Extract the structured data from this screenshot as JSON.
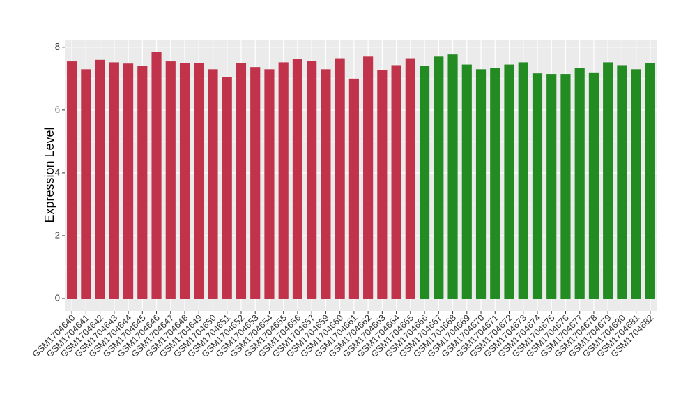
{
  "chart_data": {
    "type": "bar",
    "y_label": "Expression Level",
    "categories": [
      "GSM1704640",
      "GSM1704641",
      "GSM1704642",
      "GSM1704643",
      "GSM1704644",
      "GSM1704645",
      "GSM1704646",
      "GSM1704647",
      "GSM1704648",
      "GSM1704649",
      "GSM1704650",
      "GSM1704651",
      "GSM1704652",
      "GSM1704653",
      "GSM1704654",
      "GSM1704655",
      "GSM1704656",
      "GSM1704657",
      "GSM1704659",
      "GSM1704660",
      "GSM1704661",
      "GSM1704662",
      "GSM1704663",
      "GSM1704664",
      "GSM1704665",
      "GSM1704666",
      "GSM1704667",
      "GSM1704668",
      "GSM1704669",
      "GSM1704670",
      "GSM1704671",
      "GSM1704672",
      "GSM1704673",
      "GSM1704674",
      "GSM1704675",
      "GSM1704676",
      "GSM1704677",
      "GSM1704678",
      "GSM1704679",
      "GSM1704680",
      "GSM1704681",
      "GSM1704682"
    ],
    "values": [
      7.55,
      7.3,
      7.6,
      7.52,
      7.48,
      7.4,
      7.85,
      7.55,
      7.5,
      7.5,
      7.3,
      7.05,
      7.5,
      7.37,
      7.3,
      7.52,
      7.63,
      7.57,
      7.3,
      7.65,
      7.0,
      7.7,
      7.28,
      7.43,
      7.65,
      7.4,
      7.7,
      7.77,
      7.45,
      7.3,
      7.35,
      7.45,
      7.52,
      7.17,
      7.15,
      7.15,
      7.35,
      7.2,
      7.52,
      7.43,
      7.3,
      7.5
    ],
    "colors": [
      "#c0334b",
      "#c0334b",
      "#c0334b",
      "#c0334b",
      "#c0334b",
      "#c0334b",
      "#c0334b",
      "#c0334b",
      "#c0334b",
      "#c0334b",
      "#c0334b",
      "#c0334b",
      "#c0334b",
      "#c0334b",
      "#c0334b",
      "#c0334b",
      "#c0334b",
      "#c0334b",
      "#c0334b",
      "#c0334b",
      "#c0334b",
      "#c0334b",
      "#c0334b",
      "#c0334b",
      "#c0334b",
      "#228b22",
      "#228b22",
      "#228b22",
      "#228b22",
      "#228b22",
      "#228b22",
      "#228b22",
      "#228b22",
      "#228b22",
      "#228b22",
      "#228b22",
      "#228b22",
      "#228b22",
      "#228b22",
      "#228b22",
      "#228b22",
      "#228b22"
    ],
    "ylim": [
      -0.4,
      8.24
    ],
    "yticks": [
      0,
      2,
      4,
      6,
      8
    ],
    "grid": true
  }
}
